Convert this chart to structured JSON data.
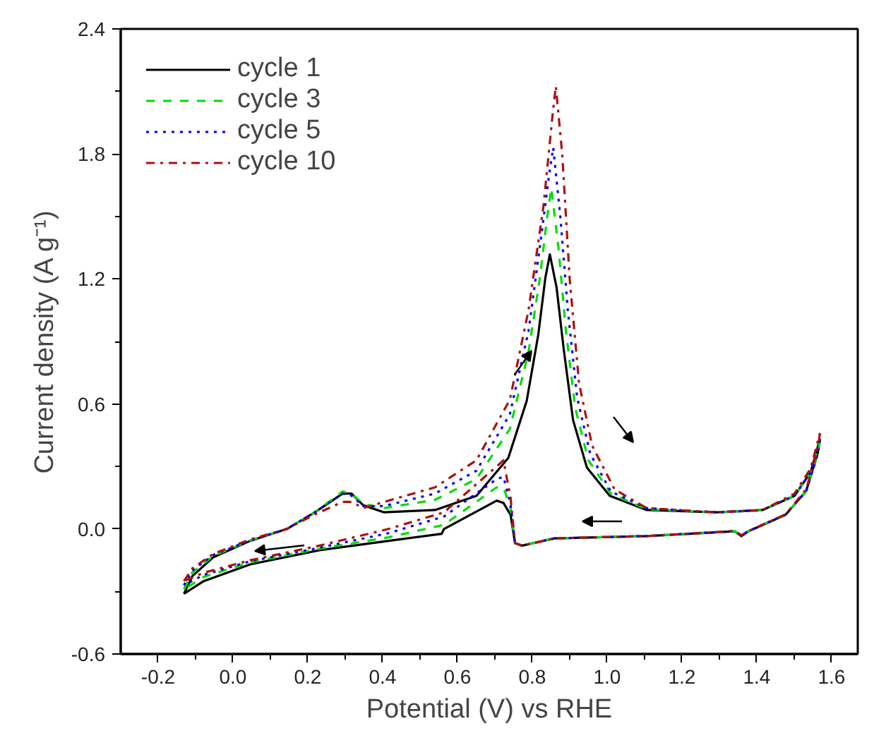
{
  "chart_data": {
    "type": "line",
    "xlabel": "Potential (V) vs RHE",
    "ylabel": "Current density (A g⁻¹)",
    "xlim": [
      -0.3,
      1.67
    ],
    "ylim": [
      -0.6,
      2.4
    ],
    "xticks": [
      {
        "value": -0.2,
        "label": "-0.2"
      },
      {
        "value": 0,
        "label": "0.0"
      },
      0.2,
      0.4,
      0.6,
      0.8,
      {
        "value": 1,
        "label": "1.0"
      },
      1.2,
      1.4,
      1.6,
      {
        "value": -0.1,
        "label": null
      },
      {
        "value": 0.1,
        "label": null
      },
      {
        "value": 0.3,
        "label": null
      },
      {
        "value": 0.5,
        "label": null
      },
      {
        "value": 0.7,
        "label": null
      },
      {
        "value": 0.9,
        "label": null
      },
      {
        "value": 1.1,
        "label": null
      },
      {
        "value": 1.3,
        "label": null
      },
      {
        "value": 1.5,
        "label": null
      }
    ],
    "yticks": [
      -0.6,
      {
        "value": 0,
        "label": "0.0"
      },
      0.6,
      1.2,
      1.8,
      2.4,
      {
        "value": -0.3,
        "label": null
      },
      {
        "value": 0.3,
        "label": null
      },
      {
        "value": 0.9,
        "label": null
      },
      {
        "value": 1.5,
        "label": null
      },
      {
        "value": 2.1,
        "label": null
      }
    ],
    "grid": false,
    "legend": "top left",
    "series": [
      {
        "name": "cycle 1",
        "color": "#000000",
        "line_style": "solid",
        "x": [
          -0.131,
          -0.109,
          -0.053,
          0.046,
          0.144,
          0.219,
          0.293,
          0.317,
          0.348,
          0.404,
          0.54,
          0.651,
          0.736,
          0.785,
          0.816,
          0.835,
          0.847,
          0.865,
          0.884,
          0.909,
          0.946,
          1.007,
          1.106,
          1.291,
          1.415,
          1.501,
          1.544,
          1.569
        ],
        "values": [
          -0.311,
          -0.227,
          -0.136,
          -0.057,
          0.0,
          0.08,
          0.17,
          0.17,
          0.114,
          0.08,
          0.091,
          0.159,
          0.341,
          0.614,
          0.932,
          1.205,
          1.318,
          1.159,
          0.864,
          0.523,
          0.295,
          0.159,
          0.091,
          0.08,
          0.091,
          0.159,
          0.273,
          0.432
        ]
      },
      {
        "color": "#000000",
        "line_style": "solid",
        "x": [
          1.569,
          1.563,
          1.532,
          1.477,
          1.378,
          1.359,
          1.341,
          1.106,
          0.859,
          0.773,
          0.754,
          0.742,
          0.723,
          0.705,
          0.564,
          0.558,
          0.416,
          0.231,
          0.046,
          -0.078,
          -0.131
        ],
        "values": [
          0.432,
          0.364,
          0.182,
          0.068,
          -0.011,
          -0.034,
          -0.011,
          -0.034,
          -0.045,
          -0.08,
          -0.068,
          0.068,
          0.125,
          0.136,
          0.0,
          -0.023,
          -0.057,
          -0.102,
          -0.17,
          -0.25,
          -0.311
        ]
      },
      {
        "name": "cycle 3",
        "color": "#00dd00",
        "line_style": "dashed",
        "x": [
          -0.131,
          -0.109,
          -0.053,
          0.046,
          0.144,
          0.219,
          0.293,
          0.317,
          0.348,
          0.404,
          0.54,
          0.651,
          0.74,
          0.79,
          0.82,
          0.84,
          0.851,
          0.87,
          0.89,
          0.915,
          0.95,
          1.01,
          1.106,
          1.291,
          1.415,
          1.501,
          1.544,
          1.569
        ],
        "values": [
          -0.29,
          -0.21,
          -0.13,
          -0.055,
          0.0,
          0.08,
          0.18,
          0.17,
          0.12,
          0.1,
          0.14,
          0.24,
          0.48,
          0.85,
          1.2,
          1.5,
          1.636,
          1.35,
          0.95,
          0.58,
          0.33,
          0.17,
          0.095,
          0.08,
          0.09,
          0.16,
          0.27,
          0.42
        ]
      },
      {
        "color": "#00dd00",
        "line_style": "dashed",
        "x": [
          1.569,
          1.563,
          1.532,
          1.477,
          1.378,
          1.359,
          1.341,
          1.106,
          0.859,
          0.773,
          0.754,
          0.742,
          0.723,
          0.705,
          0.564,
          0.416,
          0.231,
          0.046,
          -0.078,
          -0.131
        ],
        "values": [
          0.42,
          0.36,
          0.18,
          0.07,
          -0.01,
          -0.03,
          -0.01,
          -0.034,
          -0.045,
          -0.08,
          -0.068,
          0.1,
          0.2,
          0.2,
          0.02,
          -0.04,
          -0.095,
          -0.16,
          -0.23,
          -0.29
        ]
      },
      {
        "name": "cycle 5",
        "color": "#0000ff",
        "line_style": "dotted",
        "x": [
          -0.131,
          -0.109,
          -0.053,
          0.046,
          0.144,
          0.219,
          0.293,
          0.317,
          0.348,
          0.404,
          0.54,
          0.651,
          0.74,
          0.79,
          0.82,
          0.845,
          0.856,
          0.875,
          0.895,
          0.92,
          0.955,
          1.01,
          1.106,
          1.291,
          1.415,
          1.501,
          1.544,
          1.569
        ],
        "values": [
          -0.27,
          -0.2,
          -0.125,
          -0.055,
          0.0,
          0.08,
          0.17,
          0.16,
          0.11,
          0.11,
          0.17,
          0.28,
          0.55,
          0.95,
          1.35,
          1.7,
          1.83,
          1.5,
          1.05,
          0.63,
          0.36,
          0.18,
          0.1,
          0.08,
          0.09,
          0.16,
          0.27,
          0.43
        ]
      },
      {
        "color": "#0000ff",
        "line_style": "dotted",
        "x": [
          1.569,
          1.563,
          1.532,
          1.477,
          1.378,
          1.359,
          1.341,
          1.106,
          0.859,
          0.773,
          0.754,
          0.742,
          0.723,
          0.705,
          0.564,
          0.416,
          0.231,
          0.046,
          -0.078,
          -0.131
        ],
        "values": [
          0.43,
          0.36,
          0.18,
          0.07,
          -0.01,
          -0.03,
          -0.01,
          -0.034,
          -0.045,
          -0.08,
          -0.068,
          0.12,
          0.25,
          0.24,
          0.06,
          -0.02,
          -0.09,
          -0.155,
          -0.22,
          -0.27
        ]
      },
      {
        "name": "cycle 10",
        "color": "#aa1111",
        "line_style": "dashdot",
        "x": [
          -0.131,
          -0.109,
          -0.053,
          0.046,
          0.144,
          0.219,
          0.293,
          0.317,
          0.348,
          0.404,
          0.54,
          0.651,
          0.74,
          0.79,
          0.83,
          0.855,
          0.863,
          0.88,
          0.9,
          0.925,
          0.96,
          1.02,
          1.106,
          1.291,
          1.415,
          1.501,
          1.544,
          1.569
        ],
        "values": [
          -0.25,
          -0.19,
          -0.12,
          -0.05,
          0.0,
          0.07,
          0.13,
          0.13,
          0.1,
          0.13,
          0.2,
          0.33,
          0.62,
          1.05,
          1.55,
          2.0,
          2.125,
          1.8,
          1.2,
          0.7,
          0.4,
          0.19,
          0.1,
          0.08,
          0.09,
          0.17,
          0.29,
          0.46
        ]
      },
      {
        "color": "#aa1111",
        "line_style": "dashdot",
        "x": [
          1.569,
          1.563,
          1.532,
          1.477,
          1.378,
          1.359,
          1.341,
          1.106,
          0.859,
          0.773,
          0.754,
          0.742,
          0.723,
          0.705,
          0.564,
          0.416,
          0.231,
          0.046,
          -0.078,
          -0.131
        ],
        "values": [
          0.46,
          0.38,
          0.19,
          0.07,
          -0.01,
          -0.03,
          -0.01,
          -0.034,
          -0.045,
          -0.08,
          -0.068,
          0.15,
          0.33,
          0.3,
          0.08,
          0.0,
          -0.08,
          -0.15,
          -0.21,
          -0.25
        ]
      }
    ]
  }
}
